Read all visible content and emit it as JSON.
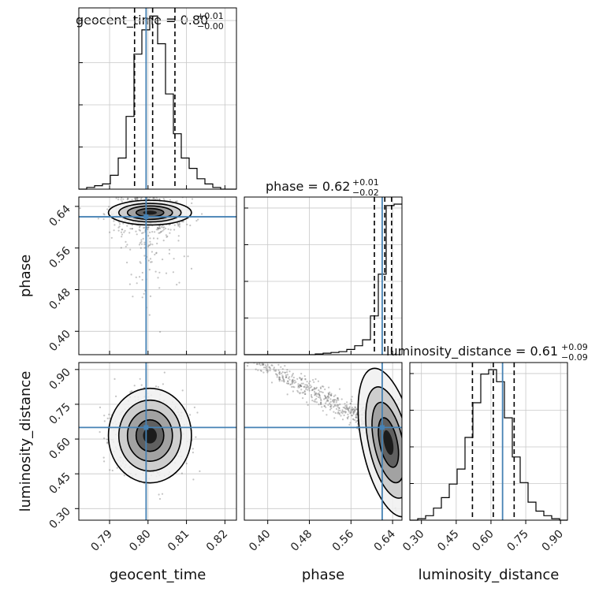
{
  "chart_data": {
    "type": "corner",
    "truth_color": "#4682b4",
    "parameters": [
      {
        "name": "geocent_time",
        "range": [
          0.782,
          0.823
        ],
        "ticks": [
          "0.79",
          "0.80",
          "0.81",
          "0.82"
        ],
        "tick_values": [
          0.79,
          0.8,
          0.81,
          0.82
        ],
        "truth": 0.7995
      },
      {
        "name": "phase",
        "range": [
          0.355,
          0.658
        ],
        "ticks": [
          "0.40",
          "0.48",
          "0.56",
          "0.64"
        ],
        "tick_values": [
          0.4,
          0.48,
          0.56,
          0.64
        ],
        "truth": 0.62
      },
      {
        "name": "luminosity_distance",
        "range": [
          0.25,
          0.93
        ],
        "ticks": [
          "0.30",
          "0.45",
          "0.60",
          "0.75",
          "0.90"
        ],
        "tick_values": [
          0.3,
          0.45,
          0.6,
          0.75,
          0.9
        ],
        "truth": 0.65
      }
    ],
    "titles": [
      {
        "label": "geocent_time = 0.80",
        "plus": "+0.01",
        "minus": "−0.00"
      },
      {
        "label": "phase = 0.62",
        "plus": "+0.01",
        "minus": "−0.02"
      },
      {
        "label": "luminosity_distance = 0.61",
        "plus": "+0.09",
        "minus": "−0.09"
      }
    ],
    "histograms": [
      {
        "param": "geocent_time",
        "edges_start": 0.782,
        "bin_width": 0.00205,
        "counts": [
          0,
          1,
          2,
          3,
          8,
          18,
          42,
          78,
          92,
          100,
          84,
          55,
          32,
          18,
          12,
          6,
          3,
          1,
          0,
          0
        ],
        "quantiles": [
          0.7965,
          0.8012,
          0.807
        ]
      },
      {
        "param": "phase",
        "edges_start": 0.355,
        "bin_width": 0.01515,
        "counts": [
          0,
          0,
          0,
          0,
          0,
          0,
          0,
          0,
          0,
          0.5,
          1,
          1.5,
          2,
          3.5,
          6,
          10,
          26,
          54,
          100,
          101
        ],
        "quantiles": [
          0.605,
          0.625,
          0.638
        ]
      },
      {
        "param": "luminosity_distance",
        "edges_start": 0.25,
        "bin_width": 0.034,
        "counts": [
          0,
          1,
          3,
          8,
          15,
          24,
          34,
          55,
          78,
          97,
          100,
          92,
          68,
          42,
          25,
          12,
          6,
          3,
          1,
          0
        ],
        "quantiles": [
          0.52,
          0.61,
          0.7
        ]
      }
    ],
    "pairs": [
      {
        "x": "geocent_time",
        "y": "phase",
        "center": [
          0.8005,
          0.628
        ],
        "spread": [
          0.0045,
          0.018
        ]
      },
      {
        "x": "geocent_time",
        "y": "luminosity_distance",
        "center": [
          0.8005,
          0.615
        ],
        "spread": [
          0.0045,
          0.085
        ]
      },
      {
        "x": "phase",
        "y": "luminosity_distance",
        "center": [
          0.63,
          0.6
        ],
        "spread": [
          0.012,
          0.08
        ]
      }
    ]
  }
}
